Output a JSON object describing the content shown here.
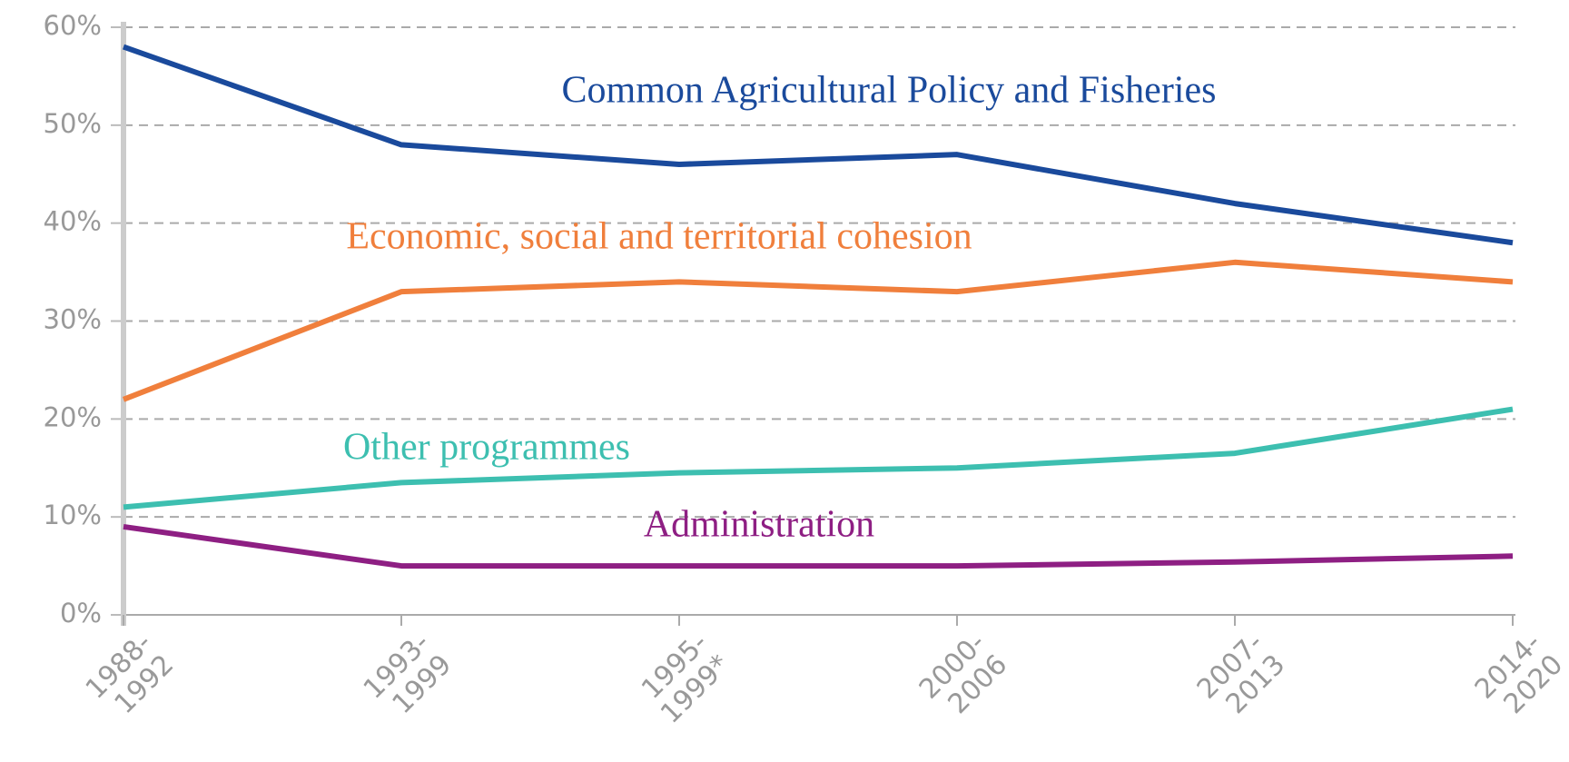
{
  "chart_data": {
    "type": "line",
    "categories": [
      "1988-\n1992",
      "1993-\n1999",
      "1995-\n1999*",
      "2000-\n2006",
      "2007-\n2013",
      "2014-\n2020"
    ],
    "series": [
      {
        "name": "Common Agricultural Policy and Fisheries",
        "color": "#1a4a9c",
        "values": [
          58,
          48,
          46,
          47,
          42,
          38
        ]
      },
      {
        "name": "Economic, social and territorial cohesion",
        "color": "#f07f3c",
        "values": [
          22,
          33,
          34,
          33,
          36,
          34
        ]
      },
      {
        "name": "Other programmes",
        "color": "#3dbfb0",
        "values": [
          11,
          13.5,
          14.5,
          15,
          16.5,
          21
        ]
      },
      {
        "name": "Administration",
        "color": "#8e1f83",
        "values": [
          9,
          5,
          5,
          5,
          5.4,
          6
        ]
      }
    ],
    "ylim": [
      0,
      60
    ],
    "yticks": [
      {
        "value": 0,
        "label": "0%"
      },
      {
        "value": 10,
        "label": "10%"
      },
      {
        "value": 20,
        "label": "20%"
      },
      {
        "value": 30,
        "label": "30%"
      },
      {
        "value": 40,
        "label": "40%"
      },
      {
        "value": 50,
        "label": "50%"
      },
      {
        "value": 60,
        "label": "60%"
      }
    ],
    "grid": true
  }
}
